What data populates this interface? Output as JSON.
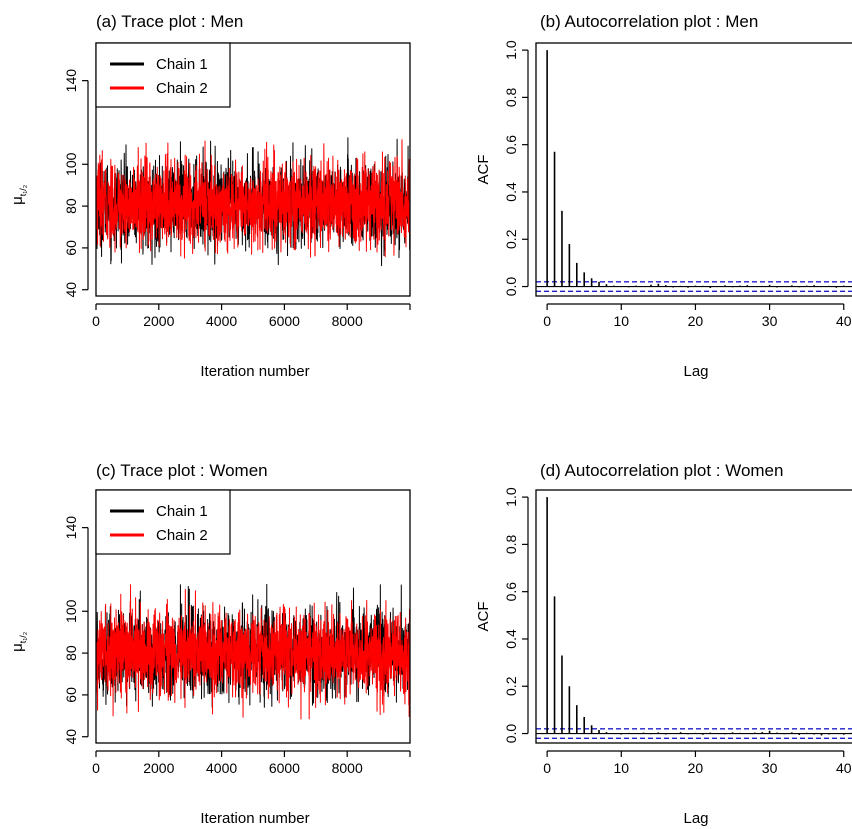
{
  "chart_data": [
    {
      "id": "a",
      "type": "line",
      "title": "(a) Trace plot : Men",
      "xlabel": "Iteration number",
      "ylabel": "μ",
      "ylabel_sub": "t₁/₂",
      "xlim": [
        0,
        10000
      ],
      "ylim": [
        37,
        158
      ],
      "xticks": [
        0,
        2000,
        4000,
        6000,
        8000
      ],
      "yticks": [
        40,
        60,
        80,
        100,
        140
      ],
      "legend": {
        "placement": "top-left",
        "entries": [
          "Chain 1",
          "Chain 2"
        ]
      },
      "series": [
        {
          "name": "Chain 1",
          "color": "#000000",
          "center": 81,
          "spread": 10,
          "min": 50,
          "max": 118,
          "n_iter": 10000
        },
        {
          "name": "Chain 2",
          "color": "#ff0000",
          "center": 81,
          "spread": 10,
          "min": 55,
          "max": 115,
          "n_iter": 10000
        }
      ]
    },
    {
      "id": "b",
      "type": "bar",
      "title": "(b) Autocorrelation plot : Men",
      "xlabel": "Lag",
      "ylabel": "ACF",
      "xlim": [
        -1.5,
        43
      ],
      "ylim": [
        -0.04,
        1.03
      ],
      "xticks": [
        0,
        10,
        20,
        30,
        40
      ],
      "yticks": [
        "0.0",
        "0.2",
        "0.4",
        "0.6",
        "0.8",
        "1.0"
      ],
      "confidence_band": 0.02,
      "lags": [
        0,
        1,
        2,
        3,
        4,
        5,
        6,
        7,
        8,
        9,
        10,
        11,
        12,
        13,
        14,
        15,
        16,
        17,
        18,
        19,
        20,
        21,
        22,
        23,
        24,
        25,
        26,
        27,
        28,
        29,
        30,
        31,
        32,
        33,
        34,
        35,
        36,
        37,
        38,
        39,
        40,
        41,
        42,
        43
      ],
      "values": [
        1.0,
        0.57,
        0.32,
        0.18,
        0.1,
        0.06,
        0.035,
        0.02,
        0.01,
        0.004,
        0.0,
        -0.003,
        0.004,
        -0.002,
        0.008,
        0.012,
        0.006,
        -0.004,
        0.003,
        -0.005,
        0.004,
        0.003,
        -0.006,
        0.002,
        0.005,
        -0.003,
        0.004,
        0.006,
        -0.002,
        0.003,
        0.007,
        -0.004,
        0.002,
        0.005,
        -0.003,
        0.004,
        0.006,
        -0.002,
        0.003,
        -0.005,
        0.004,
        0.002,
        -0.003,
        0.005
      ]
    },
    {
      "id": "c",
      "type": "line",
      "title": "(c) Trace plot : Women",
      "xlabel": "Iteration number",
      "ylabel": "μ",
      "ylabel_sub": "t₁/₂",
      "xlim": [
        0,
        10000
      ],
      "ylim": [
        37,
        158
      ],
      "xticks": [
        0,
        2000,
        4000,
        6000,
        8000
      ],
      "yticks": [
        40,
        60,
        80,
        100,
        140
      ],
      "legend": {
        "placement": "top-left",
        "entries": [
          "Chain 1",
          "Chain 2"
        ]
      },
      "series": [
        {
          "name": "Chain 1",
          "color": "#000000",
          "center": 80,
          "spread": 10,
          "min": 54,
          "max": 113,
          "n_iter": 10000
        },
        {
          "name": "Chain 2",
          "color": "#ff0000",
          "center": 80,
          "spread": 10,
          "min": 48,
          "max": 115,
          "n_iter": 10000
        }
      ]
    },
    {
      "id": "d",
      "type": "bar",
      "title": "(d) Autocorrelation plot : Women",
      "xlabel": "Lag",
      "ylabel": "ACF",
      "xlim": [
        -1.5,
        43
      ],
      "ylim": [
        -0.04,
        1.03
      ],
      "xticks": [
        0,
        10,
        20,
        30,
        40
      ],
      "yticks": [
        "0.0",
        "0.2",
        "0.4",
        "0.6",
        "0.8",
        "1.0"
      ],
      "confidence_band": 0.02,
      "lags": [
        0,
        1,
        2,
        3,
        4,
        5,
        6,
        7,
        8,
        9,
        10,
        11,
        12,
        13,
        14,
        15,
        16,
        17,
        18,
        19,
        20,
        21,
        22,
        23,
        24,
        25,
        26,
        27,
        28,
        29,
        30,
        31,
        32,
        33,
        34,
        35,
        36,
        37,
        38,
        39,
        40,
        41,
        42,
        43
      ],
      "values": [
        1.0,
        0.58,
        0.33,
        0.2,
        0.12,
        0.07,
        0.035,
        0.015,
        0.006,
        0.002,
        -0.004,
        0.003,
        -0.002,
        0.004,
        -0.003,
        0.005,
        -0.004,
        0.002,
        0.006,
        -0.003,
        0.003,
        -0.005,
        0.004,
        0.002,
        -0.003,
        0.005,
        0.003,
        -0.002,
        0.004,
        0.006,
        0.012,
        0.004,
        -0.003,
        0.005,
        -0.006,
        0.003,
        -0.004,
        -0.008,
        -0.004,
        0.002,
        -0.005,
        0.003,
        -0.004,
        0.002
      ]
    }
  ]
}
